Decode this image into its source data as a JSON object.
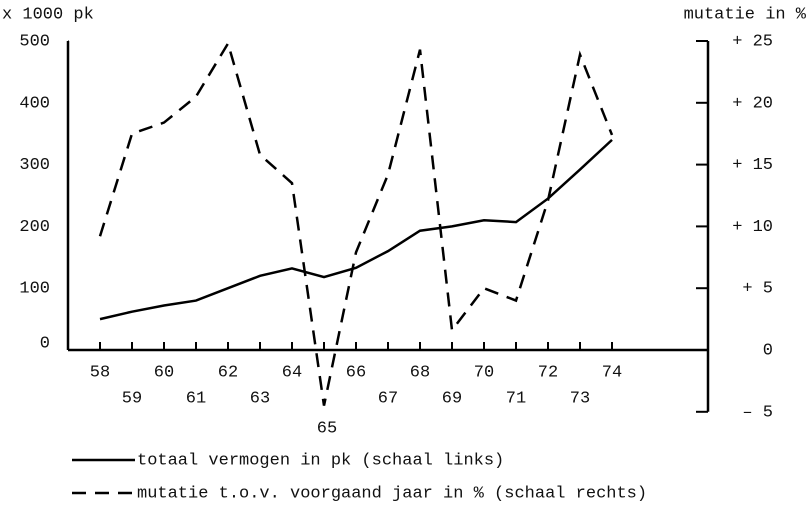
{
  "chart_data": {
    "type": "line",
    "y_label": "x 1000 pk",
    "y2_label": "mutatie in %",
    "x": [
      58,
      59,
      60,
      61,
      62,
      63,
      64,
      65,
      66,
      67,
      68,
      69,
      70,
      71,
      72,
      73,
      74
    ],
    "series": [
      {
        "name": "totaal vermogen in pk (schaal links)",
        "color": "#000000",
        "dash": "solid",
        "values": [
          50,
          62,
          72,
          80,
          100,
          120,
          132,
          118,
          133,
          160,
          193,
          200,
          210,
          207,
          245,
          292,
          340
        ]
      },
      {
        "name": "mutatie t.o.v. voorgaand jaar in % (schaal rechts)",
        "color": "#000000",
        "dash": "dashed",
        "axis": "y2",
        "values": [
          9.2,
          17.5,
          18.4,
          20.5,
          24.8,
          15.8,
          13.5,
          -4.5,
          7.9,
          14.2,
          24.3,
          1.6,
          5.0,
          4.0,
          12.1,
          23.9,
          17.4
        ]
      }
    ],
    "xlim": [
      57,
      77
    ],
    "xticks": [
      58,
      59,
      60,
      61,
      62,
      63,
      64,
      65,
      66,
      67,
      68,
      69,
      70,
      71,
      72,
      73,
      74
    ],
    "ylim": [
      0,
      500
    ],
    "yticks": [
      0,
      100,
      200,
      300,
      400,
      500
    ],
    "y2lim": [
      -5,
      25
    ],
    "y2ticks": [
      {
        "value": 25,
        "label": "+ 25"
      },
      {
        "value": 20,
        "label": "+ 20"
      },
      {
        "value": 15,
        "label": "+ 15"
      },
      {
        "value": 10,
        "label": "+ 10"
      },
      {
        "value": 5,
        "label": "+ 5"
      },
      0,
      {
        "value": -5,
        "label": "– 5"
      }
    ],
    "grid": false
  }
}
